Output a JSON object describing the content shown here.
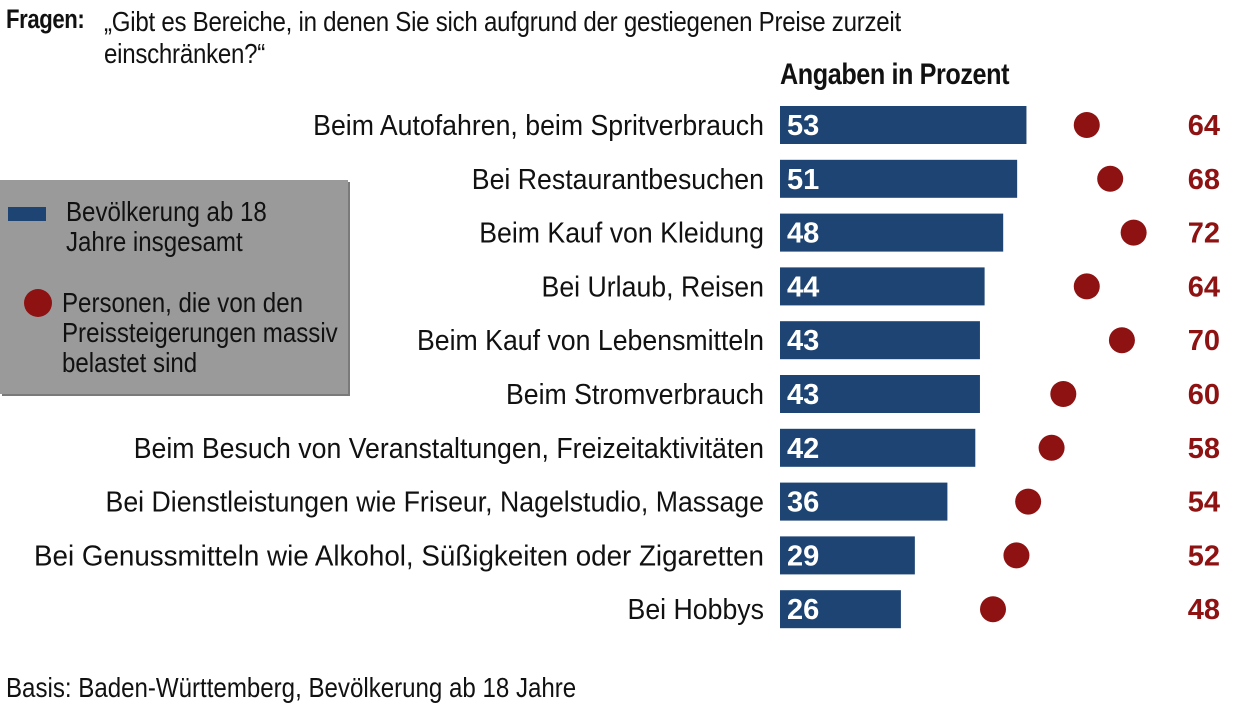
{
  "header": {
    "label": "Fragen:",
    "question": "„Gibt es Bereiche, in denen Sie sich aufgrund der gestiegenen Preise zurzeit einschränken?“"
  },
  "column_header": "Angaben in Prozent",
  "legend": {
    "series1_label": "Bevölkerung ab 18 Jahre insgesamt",
    "series2_label": "Personen, die von den Preissteigerungen massiv belastet sind"
  },
  "footer": "Basis: Baden-Württemberg, Bevölkerung ab 18 Jahre",
  "colors": {
    "bar": "#1d4472",
    "dot": "#8e1212",
    "legend_bg": "#9a9a9a"
  },
  "chart_data": {
    "type": "bar",
    "orientation": "horizontal",
    "title": "„Gibt es Bereiche, in denen Sie sich aufgrund der gestiegenen Preise zurzeit einschränken?“",
    "unit": "Angaben in Prozent",
    "categories": [
      "Beim Autofahren, beim Spritverbrauch",
      "Bei Restaurantbesuchen",
      "Beim Kauf von Kleidung",
      "Bei Urlaub, Reisen",
      "Beim Kauf von Lebensmitteln",
      "Beim Stromverbrauch",
      "Beim Besuch von Veranstaltungen, Freizeitaktivitäten",
      "Bei Dienstleistungen wie Friseur, Nagelstudio, Massage",
      "Bei Genussmitteln wie Alkohol, Süßigkeiten oder Zigaretten",
      "Bei Hobbys"
    ],
    "series": [
      {
        "name": "Bevölkerung ab 18 Jahre insgesamt",
        "style": "bar",
        "values": [
          53,
          51,
          48,
          44,
          43,
          43,
          42,
          36,
          29,
          26
        ]
      },
      {
        "name": "Personen, die von den Preissteigerungen massiv belastet sind",
        "style": "dot",
        "values": [
          64,
          68,
          72,
          64,
          70,
          60,
          58,
          54,
          52,
          48
        ]
      }
    ],
    "legend_position": "left",
    "grid": false
  }
}
